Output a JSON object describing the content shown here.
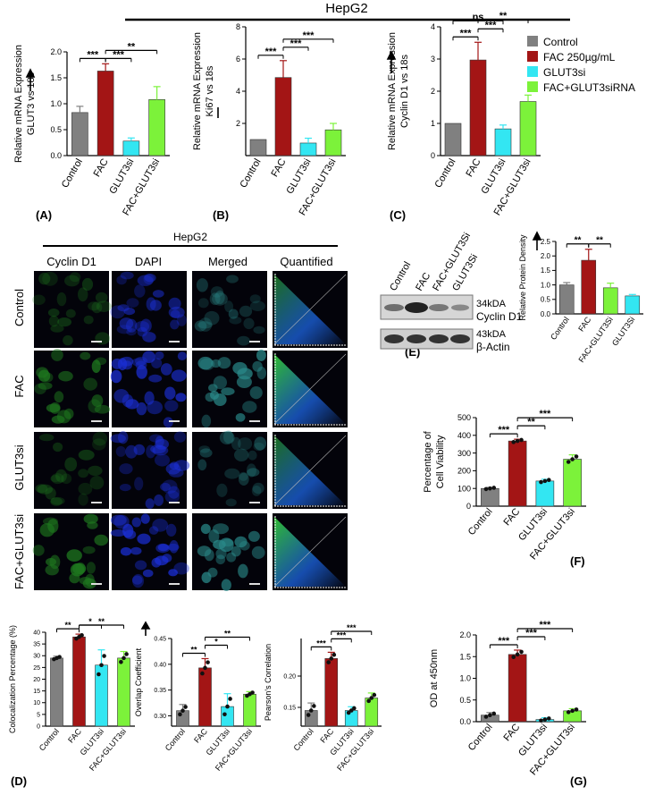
{
  "header": {
    "top_title": "HepG2",
    "mid_title": "HepG2"
  },
  "panel_labels": {
    "A": "(A)",
    "B": "(B)",
    "C": "(C)",
    "D": "(D)",
    "E": "(E)",
    "F": "(F)",
    "G": "(G)"
  },
  "legend": {
    "items": [
      {
        "label": "Control",
        "color": "#808080"
      },
      {
        "label": "FAC 250µg/mL",
        "color": "#A31515"
      },
      {
        "label": "GLUT3si",
        "color": "#33E6F2"
      },
      {
        "label": "FAC+GLUT3siRNA",
        "color": "#7CF23A"
      }
    ]
  },
  "colors": {
    "control": "#808080",
    "fac": "#A31515",
    "glut3si": "#33E6F2",
    "combo": "#7CF23A"
  },
  "microscopy": {
    "columns": [
      "Cyclin D1",
      "DAPI",
      "Merged",
      "Quantified"
    ],
    "rows": [
      "Control",
      "FAC",
      "GLUT3si",
      "FAC+GLUT3si"
    ]
  },
  "western": {
    "lanes": [
      "Control",
      "FAC",
      "FAC+GLUT3Si",
      "GLUT3Si"
    ],
    "band1_kda": "34kDA",
    "band1_name": "Cyclin D1",
    "band2_kda": "43kDA",
    "band2_name": "β-Actin"
  },
  "chart_data": [
    {
      "id": "A",
      "type": "bar",
      "categories": [
        "Control",
        "FAC",
        "GLUT3si",
        "FAC+GLUT3si"
      ],
      "values": [
        0.83,
        1.63,
        0.28,
        1.08
      ],
      "errors": [
        0.12,
        0.14,
        0.06,
        0.25
      ],
      "ylabel": [
        "Relative mRNA Expression",
        "GLUT3 vs 18s"
      ],
      "ylim": [
        0,
        2.0
      ],
      "yticks": [
        "0.0",
        "0.5",
        "1.0",
        "1.5",
        "2.0"
      ],
      "ytick_values": [
        0,
        0.5,
        1.0,
        1.5,
        2.0
      ],
      "significance": [
        "***",
        "***",
        "**"
      ]
    },
    {
      "id": "B",
      "type": "bar",
      "categories": [
        "Control",
        "FAC",
        "GLUT3si",
        "FAC+GLUT3si"
      ],
      "values": [
        1.0,
        4.85,
        0.78,
        1.6
      ],
      "errors": [
        0,
        1.05,
        0.3,
        0.4
      ],
      "ylabel": [
        "Relative mRNA Expression",
        "Ki67  vs 18s"
      ],
      "ylim": [
        0,
        8
      ],
      "yticks": [
        "2",
        "4",
        "6",
        "8"
      ],
      "ytick_values": [
        2,
        4,
        6,
        8
      ],
      "significance": [
        "***",
        "***",
        "***"
      ]
    },
    {
      "id": "C",
      "type": "bar",
      "categories": [
        "Control",
        "FAC",
        "GLUT3si",
        "FAC+GLUT3si"
      ],
      "values": [
        1.0,
        2.97,
        0.83,
        1.68
      ],
      "errors": [
        0,
        0.55,
        0.12,
        0.2
      ],
      "ylabel": [
        "Relative mRNA Expression",
        "Cyclin D1 vs 18s"
      ],
      "ylim": [
        0,
        4
      ],
      "yticks": [
        "0",
        "1",
        "2",
        "3",
        "4"
      ],
      "ytick_values": [
        0,
        1,
        2,
        3,
        4
      ],
      "significance": [
        "***",
        "***",
        "ns",
        "**"
      ]
    },
    {
      "id": "D1",
      "type": "bar",
      "categories": [
        "Control",
        "FAC",
        "GLUT3si",
        "FAC+GLUT3si"
      ],
      "values": [
        29,
        38,
        26,
        29
      ],
      "errors": [
        0.8,
        1.2,
        6.5,
        2.8
      ],
      "ylabel": [
        "Colocalization Percentage (%)"
      ],
      "ylim": [
        0,
        40
      ],
      "yticks": [
        "0",
        "5",
        "10",
        "15",
        "20",
        "25",
        "30",
        "35",
        "40"
      ],
      "ytick_values": [
        0,
        5,
        10,
        15,
        20,
        25,
        30,
        35,
        40
      ],
      "significance": [
        "**",
        "*",
        "**"
      ]
    },
    {
      "id": "D2",
      "type": "bar",
      "categories": [
        "Control",
        "FAC",
        "GLUT3si",
        "FAC+GLUT3si"
      ],
      "values": [
        0.31,
        0.393,
        0.318,
        0.342
      ],
      "errors": [
        0.012,
        0.018,
        0.025,
        0.005
      ],
      "ylabel": [
        "Overlap Coefficient"
      ],
      "ylim": [
        0.28,
        0.45
      ],
      "yticks": [
        "0.30",
        "0.35",
        "0.40",
        "0.45"
      ],
      "ytick_values": [
        0.3,
        0.35,
        0.4,
        0.45
      ],
      "significance": [
        "**",
        "*",
        "**"
      ]
    },
    {
      "id": "D3",
      "type": "bar",
      "categories": [
        "Control",
        "FAC",
        "GLUT3si",
        "FAC+GLUT3si"
      ],
      "values": [
        0.145,
        0.228,
        0.145,
        0.165
      ],
      "errors": [
        0.012,
        0.01,
        0.006,
        0.008
      ],
      "ylabel": [
        "Pearson's Correlation"
      ],
      "ylim": [
        0.12,
        0.26
      ],
      "yticks": [
        "0.15",
        "0.20"
      ],
      "ytick_values": [
        0.15,
        0.2
      ],
      "significance": [
        "***",
        "***",
        "***"
      ]
    },
    {
      "id": "E",
      "type": "bar",
      "categories": [
        "Control",
        "FAC",
        "FAC+GLUT3Si",
        "GLUT3Si"
      ],
      "values": [
        1.0,
        1.85,
        0.9,
        0.62
      ],
      "errors": [
        0.08,
        0.38,
        0.16,
        0.05
      ],
      "ylabel": [
        "Relative Protein Density"
      ],
      "ylim": [
        0,
        2.5
      ],
      "yticks": [
        "0.0",
        "0.5",
        "1.0",
        "1.5",
        "2.0",
        "2.5"
      ],
      "ytick_values": [
        0,
        0.5,
        1.0,
        1.5,
        2.0,
        2.5
      ],
      "significance": [
        "**",
        "**"
      ]
    },
    {
      "id": "F",
      "type": "bar",
      "categories": [
        "Control",
        "FAC",
        "GLUT3si",
        "FAC+GLUT3si"
      ],
      "values": [
        100,
        368,
        142,
        265
      ],
      "errors": [
        6,
        10,
        10,
        25
      ],
      "ylabel": [
        "Percentage of",
        "Cell Viability"
      ],
      "ylim": [
        0,
        500
      ],
      "yticks": [
        "0",
        "100",
        "200",
        "300",
        "400",
        "500"
      ],
      "ytick_values": [
        0,
        100,
        200,
        300,
        400,
        500
      ],
      "significance": [
        "***",
        "**",
        "***"
      ]
    },
    {
      "id": "G",
      "type": "bar",
      "categories": [
        "Control",
        "FAC",
        "GLUT3si",
        "FAC+GLUT3si"
      ],
      "values": [
        0.15,
        1.55,
        0.05,
        0.25
      ],
      "errors": [
        0.06,
        0.1,
        0.04,
        0.05
      ],
      "ylabel": [
        "OD at 450nm"
      ],
      "ylim": [
        0,
        2.0
      ],
      "yticks": [
        "0.0",
        "0.5",
        "1.0",
        "1.5",
        "2.0"
      ],
      "ytick_values": [
        0,
        0.5,
        1.0,
        1.5,
        2.0
      ],
      "significance": [
        "***",
        "***",
        "***"
      ]
    }
  ]
}
